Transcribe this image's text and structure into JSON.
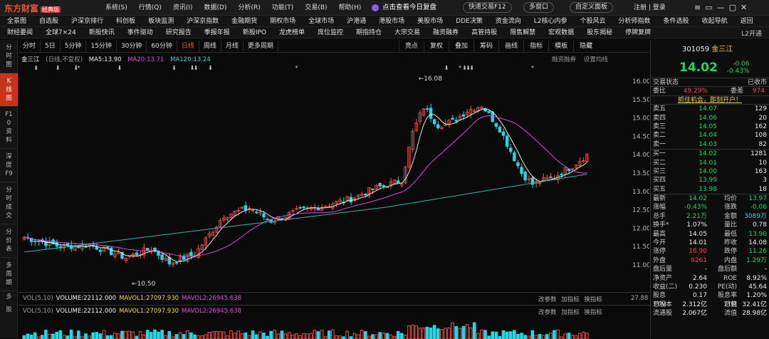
{
  "app": {
    "logo": "东方财富",
    "logo_sub": "经典版"
  },
  "menu": [
    "系统(S)",
    "行情(Q)",
    "资讯(I)",
    "数据(D)",
    "分析(R)",
    "功能(T)",
    "交易(B)",
    "帮助(H)"
  ],
  "replay": "点击查看今日复盘",
  "pills": [
    "快速交易F12",
    "多窗口",
    "自定义面板"
  ],
  "register": "注册 | 登录",
  "nav1": [
    "全景图",
    "自选股",
    "沪深京排行",
    "科创板",
    "板块监测",
    "沪深京指数",
    "金融期货",
    "期权市场",
    "全球市场",
    "沪港通",
    "港股市场",
    "美股市场",
    "DDE决策",
    "资金流向",
    "L2核心内参",
    "个股风云",
    "分析师指数",
    "条件选股",
    "收起导航",
    "返回"
  ],
  "nav2": [
    "财经要闻",
    "全球7×24",
    "新股快讯",
    "事件驱动",
    "研究报告",
    "季报年报",
    "新股IPO",
    "龙虎榜单",
    "席位监控",
    "期指持仓",
    "大宗交易",
    "融资融券",
    "高管持股",
    "限售解禁",
    "宏观数据",
    "股东揭秘",
    "停牌复牌"
  ],
  "l2": "L2开通",
  "leftbar": [
    "分时图",
    "K线图",
    "F10资料",
    "深度F9",
    "分时成交",
    "分价表",
    "多周期"
  ],
  "toolbar": [
    "分时",
    "5日",
    "5分钟",
    "15分钟",
    "30分钟",
    "60分钟",
    "日线",
    "周线",
    "月线",
    "更多周期"
  ],
  "toolbar2": [
    "亮点",
    "复权",
    "叠加",
    "筹码",
    "画线",
    "指标",
    "模板",
    "隐藏"
  ],
  "kline_info": {
    "name": "金三江",
    "mode": "(日线,不复权)",
    "ma5": "MA5:13.90",
    "ma20": "MA20:13.71",
    "ma120": "MA120:13.24"
  },
  "chart_links": [
    "融资融券",
    "设置均线"
  ],
  "yaxis": [
    "16.00",
    "15.50",
    "15.00",
    "14.50",
    "14.00",
    "13.50",
    "13.00",
    "12.50",
    "12.00",
    "11.50",
    "11.00"
  ],
  "annotations": {
    "high": "16.08",
    "low": "10.50"
  },
  "vol": {
    "label": "VOL(5,10)",
    "volume": "VOLUME:22112.000",
    "mavol1": "MAVOL1:27097.930",
    "mavol2": "MAVOL2:26945.638",
    "tools": "改参数 加指标 换指标",
    "axis_top": "27.88"
  },
  "side_vol": [
    "多",
    "股"
  ],
  "quote": {
    "code": "301059",
    "name": "金三江",
    "price": "14.02",
    "chg": "-0.06",
    "pct": "-0.43%",
    "status_label": "交易状态",
    "status": "已收市",
    "webi_label": "委比",
    "webi": "49.29%",
    "weicha_label": "委差",
    "weicha": "974",
    "banner": "抓住机会，即刻开户！"
  },
  "asks": [
    [
      "卖五",
      "14.07",
      "129"
    ],
    [
      "卖四",
      "14.06",
      "20"
    ],
    [
      "卖三",
      "14.05",
      "162"
    ],
    [
      "卖二",
      "14.04",
      "108"
    ],
    [
      "卖一",
      "14.03",
      "82"
    ]
  ],
  "bids": [
    [
      "买一",
      "14.02",
      "1281"
    ],
    [
      "买二",
      "14.01",
      "10"
    ],
    [
      "买三",
      "14.00",
      "163"
    ],
    [
      "买四",
      "13.99",
      "3"
    ],
    [
      "买五",
      "13.98",
      "18"
    ]
  ],
  "stats": [
    [
      "最新",
      "14.02",
      "均价",
      "13.97"
    ],
    [
      "涨幅",
      "-0.43%",
      "涨跌",
      "-0.06"
    ],
    [
      "总手",
      "2.21万",
      "金额",
      "3089万"
    ],
    [
      "换手*",
      "1.07%",
      "量比",
      "0.78"
    ],
    [
      "最高",
      "14.05",
      "最低",
      "13.90"
    ],
    [
      "今开",
      "14.01",
      "昨收",
      "14.08"
    ],
    [
      "涨停",
      "16.90",
      "跌停",
      "11.26"
    ],
    [
      "外盘",
      "9261",
      "内盘",
      "1.29万"
    ],
    [
      "盘后量",
      "-",
      "盘后额",
      "-"
    ],
    [
      "净资产",
      "2.64",
      "ROE",
      "8.92%"
    ],
    [
      "收益(二)",
      "0.230",
      "PE(动)",
      "45.64"
    ],
    [
      "股息TTM",
      "0.17",
      "股息率TTM",
      "1.20%"
    ],
    [
      "总股本",
      "2.312亿",
      "总值",
      "32.41亿"
    ],
    [
      "流通股",
      "2.067亿",
      "流值",
      "28.98亿"
    ]
  ]
}
